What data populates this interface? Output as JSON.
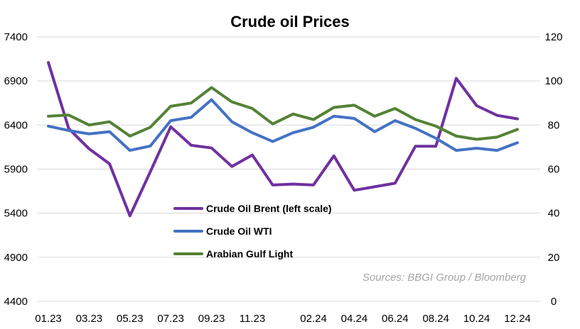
{
  "chart_data": {
    "type": "line",
    "title": "Crude oil Prices",
    "source": "Sources: BBGI Group / Bloomberg",
    "x": [
      "01.23",
      "02.23",
      "03.23",
      "04.23",
      "05.23",
      "06.23",
      "07.23",
      "08.23",
      "09.23",
      "10.23",
      "11.23",
      "12.23",
      "01.24",
      "02.24",
      "03.24",
      "04.24",
      "05.24",
      "06.24",
      "07.24",
      "08.24",
      "09.24",
      "10.24",
      "11.24",
      "12.24"
    ],
    "x_tick_labels": [
      "01.23",
      "03.23",
      "05.23",
      "07.23",
      "09.23",
      "11.23",
      "02.24",
      "04.24",
      "06.24",
      "08.24",
      "10.24",
      "12.24"
    ],
    "x_tick_positions": [
      "01.23",
      "03.23",
      "05.23",
      "07.23",
      "09.23",
      "11.23",
      "02.24",
      "04.24",
      "06.24",
      "08.24",
      "10.24",
      "12.24"
    ],
    "y_left": {
      "min": 4400,
      "max": 7400,
      "ticks": [
        4400,
        4900,
        5400,
        5900,
        6400,
        6900,
        7400
      ]
    },
    "y_right": {
      "min": 0,
      "max": 120,
      "ticks": [
        0,
        20,
        40,
        60,
        80,
        100,
        120
      ]
    },
    "grid": "horizontal",
    "legend_position": "center-left",
    "series": [
      {
        "name": "Crude Oil Brent (left scale)",
        "axis": "left",
        "color": "#7030a0",
        "values": [
          7110,
          6360,
          6130,
          5960,
          5370,
          5870,
          6380,
          6170,
          6140,
          5930,
          6060,
          5720,
          5730,
          5720,
          6050,
          5660,
          5700,
          5740,
          6160,
          6160,
          6930,
          6620,
          6510,
          6470
        ]
      },
      {
        "name": "Crude Oil WTI",
        "axis": "right",
        "color": "#4472c4",
        "values": [
          79.5,
          77.5,
          76,
          77,
          68.5,
          70.5,
          82,
          83.5,
          91.5,
          81.5,
          76.5,
          72.5,
          76.5,
          79,
          84,
          83,
          77,
          82,
          78.5,
          74,
          68.5,
          69.5,
          68.5,
          72
        ]
      },
      {
        "name": "Arabian Gulf Light",
        "axis": "right",
        "color": "#548235",
        "values": [
          84,
          84.5,
          80,
          81.5,
          75,
          79,
          88.5,
          90,
          97,
          90.5,
          87.5,
          80.5,
          85,
          82.5,
          88,
          89,
          84,
          87.5,
          82.5,
          79.5,
          75,
          73.5,
          74.5,
          78
        ]
      }
    ]
  }
}
